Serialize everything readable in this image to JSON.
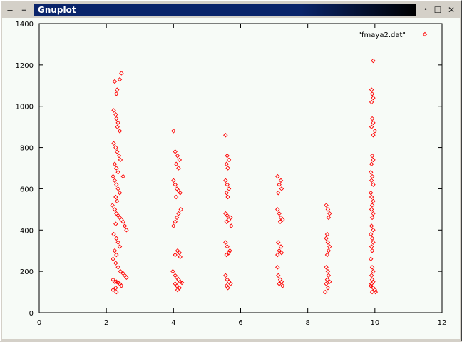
{
  "window": {
    "title": "Gnuplot",
    "icons": {
      "minimize": "minimize-icon",
      "pin": "pin-icon",
      "small_dot": "menu-dot-icon",
      "maximize": "maximize-icon",
      "close": "close-icon"
    }
  },
  "chart_data": {
    "type": "scatter",
    "legend": {
      "label": "\"fmaya2.dat\"",
      "placement": "top-right"
    },
    "xlim": [
      0,
      12
    ],
    "ylim": [
      0,
      1400
    ],
    "x_ticks": [
      0,
      2,
      4,
      6,
      8,
      10,
      12
    ],
    "y_ticks": [
      0,
      200,
      400,
      600,
      800,
      1000,
      1200,
      1400
    ],
    "grid": false,
    "colors": {
      "marker": "#ff0000",
      "axes": "#000000",
      "background": "#f7fbf7"
    },
    "series": [
      {
        "points": [
          [
            2.25,
            1120
          ],
          [
            2.32,
            1080
          ],
          [
            2.3,
            1060
          ],
          [
            2.45,
            1160
          ],
          [
            2.4,
            1130
          ],
          [
            2.22,
            980
          ],
          [
            2.28,
            960
          ],
          [
            2.3,
            940
          ],
          [
            2.35,
            920
          ],
          [
            2.33,
            900
          ],
          [
            2.4,
            880
          ],
          [
            2.22,
            820
          ],
          [
            2.28,
            800
          ],
          [
            2.32,
            780
          ],
          [
            2.38,
            760
          ],
          [
            2.42,
            740
          ],
          [
            2.25,
            720
          ],
          [
            2.3,
            700
          ],
          [
            2.35,
            680
          ],
          [
            2.2,
            660
          ],
          [
            2.25,
            640
          ],
          [
            2.3,
            620
          ],
          [
            2.35,
            600
          ],
          [
            2.4,
            580
          ],
          [
            2.28,
            560
          ],
          [
            2.32,
            540
          ],
          [
            2.5,
            660
          ],
          [
            2.18,
            520
          ],
          [
            2.25,
            500
          ],
          [
            2.3,
            480
          ],
          [
            2.35,
            470
          ],
          [
            2.4,
            460
          ],
          [
            2.45,
            450
          ],
          [
            2.5,
            440
          ],
          [
            2.28,
            430
          ],
          [
            2.55,
            420
          ],
          [
            2.6,
            400
          ],
          [
            2.22,
            380
          ],
          [
            2.3,
            360
          ],
          [
            2.35,
            340
          ],
          [
            2.4,
            320
          ],
          [
            2.25,
            300
          ],
          [
            2.3,
            280
          ],
          [
            2.2,
            260
          ],
          [
            2.28,
            240
          ],
          [
            2.35,
            220
          ],
          [
            2.42,
            200
          ],
          [
            2.5,
            190
          ],
          [
            2.55,
            180
          ],
          [
            2.6,
            170
          ],
          [
            2.2,
            160
          ],
          [
            2.25,
            150
          ],
          [
            2.3,
            150
          ],
          [
            2.35,
            145
          ],
          [
            2.4,
            140
          ],
          [
            2.45,
            130
          ],
          [
            2.28,
            120
          ],
          [
            2.2,
            110
          ],
          [
            2.3,
            100
          ],
          [
            4.0,
            880
          ],
          [
            4.05,
            780
          ],
          [
            4.12,
            760
          ],
          [
            4.18,
            740
          ],
          [
            4.08,
            720
          ],
          [
            4.15,
            700
          ],
          [
            4.0,
            640
          ],
          [
            4.05,
            620
          ],
          [
            4.1,
            600
          ],
          [
            4.15,
            590
          ],
          [
            4.2,
            580
          ],
          [
            4.08,
            560
          ],
          [
            4.22,
            500
          ],
          [
            4.15,
            480
          ],
          [
            4.1,
            460
          ],
          [
            4.05,
            440
          ],
          [
            4.0,
            420
          ],
          [
            4.12,
            300
          ],
          [
            4.18,
            290
          ],
          [
            4.05,
            280
          ],
          [
            4.2,
            270
          ],
          [
            3.98,
            200
          ],
          [
            4.05,
            180
          ],
          [
            4.1,
            170
          ],
          [
            4.15,
            160
          ],
          [
            4.2,
            150
          ],
          [
            4.25,
            145
          ],
          [
            4.05,
            140
          ],
          [
            4.1,
            130
          ],
          [
            4.18,
            120
          ],
          [
            4.12,
            110
          ],
          [
            5.55,
            860
          ],
          [
            5.6,
            760
          ],
          [
            5.65,
            740
          ],
          [
            5.58,
            720
          ],
          [
            5.62,
            700
          ],
          [
            5.55,
            640
          ],
          [
            5.6,
            620
          ],
          [
            5.65,
            600
          ],
          [
            5.58,
            580
          ],
          [
            5.62,
            560
          ],
          [
            5.55,
            480
          ],
          [
            5.6,
            470
          ],
          [
            5.7,
            460
          ],
          [
            5.65,
            450
          ],
          [
            5.58,
            440
          ],
          [
            5.72,
            420
          ],
          [
            5.55,
            340
          ],
          [
            5.6,
            320
          ],
          [
            5.68,
            300
          ],
          [
            5.65,
            290
          ],
          [
            5.58,
            280
          ],
          [
            5.55,
            180
          ],
          [
            5.6,
            160
          ],
          [
            5.65,
            150
          ],
          [
            5.7,
            140
          ],
          [
            5.58,
            130
          ],
          [
            5.62,
            120
          ],
          [
            7.1,
            660
          ],
          [
            7.2,
            640
          ],
          [
            7.15,
            620
          ],
          [
            7.22,
            600
          ],
          [
            7.12,
            580
          ],
          [
            7.1,
            500
          ],
          [
            7.15,
            480
          ],
          [
            7.2,
            460
          ],
          [
            7.25,
            450
          ],
          [
            7.18,
            440
          ],
          [
            7.12,
            340
          ],
          [
            7.2,
            320
          ],
          [
            7.15,
            300
          ],
          [
            7.22,
            290
          ],
          [
            7.1,
            280
          ],
          [
            7.1,
            220
          ],
          [
            7.12,
            180
          ],
          [
            7.18,
            160
          ],
          [
            7.22,
            150
          ],
          [
            7.15,
            140
          ],
          [
            7.25,
            130
          ],
          [
            8.55,
            520
          ],
          [
            8.6,
            500
          ],
          [
            8.65,
            480
          ],
          [
            8.62,
            460
          ],
          [
            8.58,
            380
          ],
          [
            8.55,
            360
          ],
          [
            8.6,
            340
          ],
          [
            8.65,
            320
          ],
          [
            8.62,
            300
          ],
          [
            8.58,
            280
          ],
          [
            8.55,
            220
          ],
          [
            8.6,
            200
          ],
          [
            8.62,
            180
          ],
          [
            8.58,
            160
          ],
          [
            8.65,
            150
          ],
          [
            8.55,
            140
          ],
          [
            8.6,
            120
          ],
          [
            8.52,
            100
          ],
          [
            9.95,
            1220
          ],
          [
            9.9,
            1080
          ],
          [
            9.92,
            1060
          ],
          [
            9.95,
            1040
          ],
          [
            9.9,
            1020
          ],
          [
            9.92,
            940
          ],
          [
            9.95,
            920
          ],
          [
            9.9,
            900
          ],
          [
            10.0,
            880
          ],
          [
            9.95,
            860
          ],
          [
            9.92,
            760
          ],
          [
            9.95,
            740
          ],
          [
            9.9,
            720
          ],
          [
            9.88,
            680
          ],
          [
            9.92,
            660
          ],
          [
            9.9,
            640
          ],
          [
            9.95,
            620
          ],
          [
            9.88,
            580
          ],
          [
            9.9,
            560
          ],
          [
            9.95,
            540
          ],
          [
            9.92,
            520
          ],
          [
            9.9,
            500
          ],
          [
            9.95,
            480
          ],
          [
            9.92,
            460
          ],
          [
            9.9,
            420
          ],
          [
            9.95,
            400
          ],
          [
            9.88,
            380
          ],
          [
            9.92,
            360
          ],
          [
            9.95,
            340
          ],
          [
            9.9,
            320
          ],
          [
            9.92,
            300
          ],
          [
            9.88,
            260
          ],
          [
            9.92,
            220
          ],
          [
            9.95,
            200
          ],
          [
            9.9,
            180
          ],
          [
            9.92,
            160
          ],
          [
            9.95,
            150
          ],
          [
            9.9,
            140
          ],
          [
            9.88,
            130
          ],
          [
            9.95,
            120
          ],
          [
            10.0,
            110
          ],
          [
            9.92,
            100
          ],
          [
            10.02,
            100
          ]
        ]
      }
    ]
  }
}
